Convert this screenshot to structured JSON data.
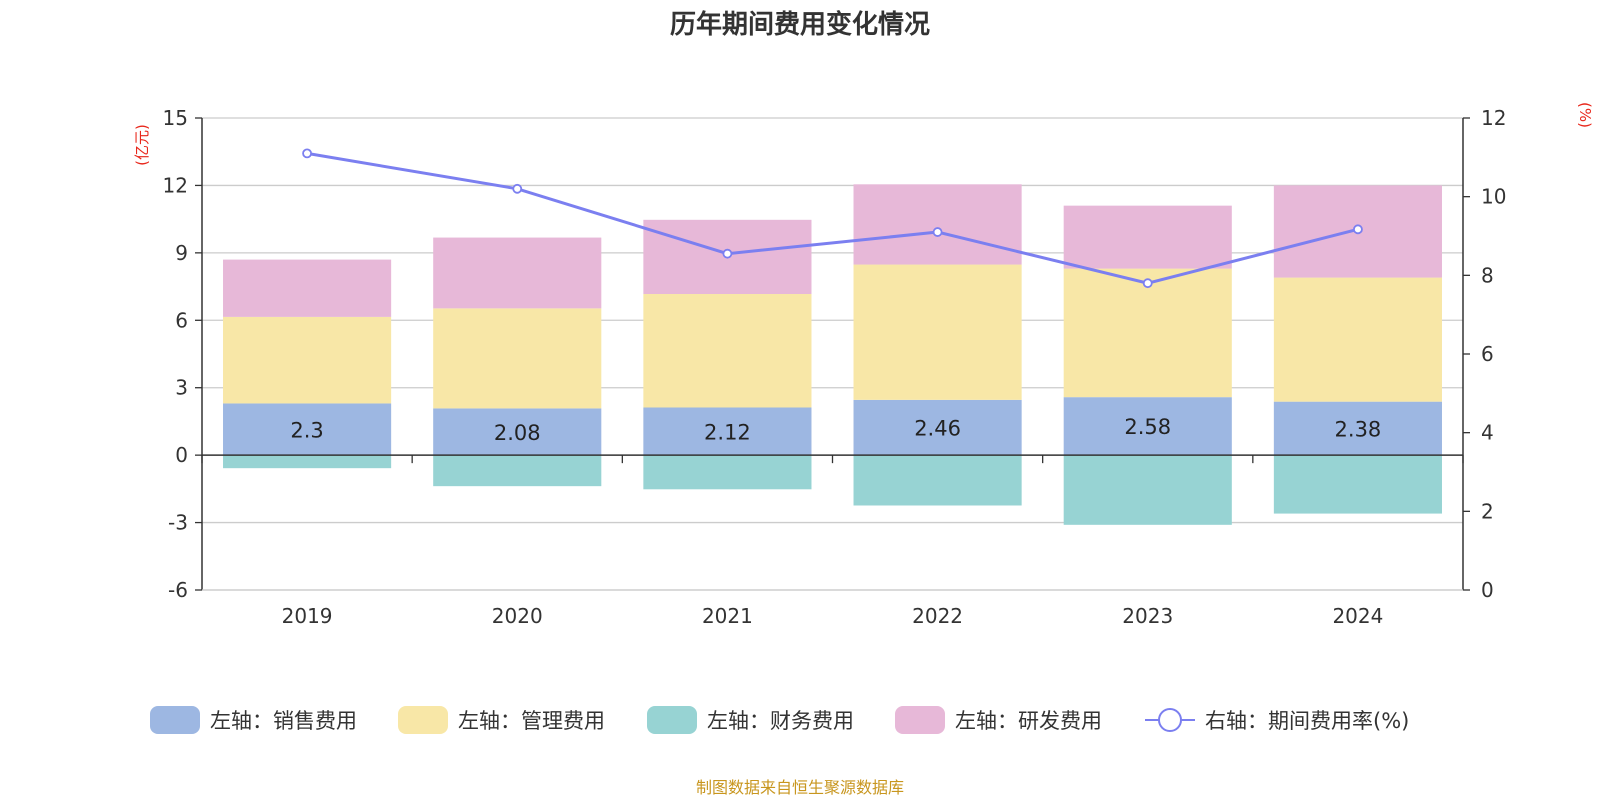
{
  "chart_data": {
    "type": "bar",
    "stacked": true,
    "title": "历年期间费用变化情况",
    "categories": [
      "2019",
      "2020",
      "2021",
      "2022",
      "2023",
      "2024"
    ],
    "left_axis": {
      "unit": "(亿元)",
      "ylim": [
        -6,
        15
      ],
      "ticks": [
        "15",
        "12",
        "9",
        "6",
        "3",
        "0",
        "-3",
        "-6"
      ]
    },
    "right_axis": {
      "unit": "(%)",
      "ylim": [
        0,
        12
      ],
      "ticks": [
        "12",
        "10",
        "8",
        "6",
        "4",
        "2",
        "0"
      ]
    },
    "series": [
      {
        "name": "左轴：销售费用",
        "axis": "left",
        "color": "#9db7e2",
        "values": [
          2.3,
          2.08,
          2.12,
          2.46,
          2.58,
          2.38
        ],
        "labels": [
          "2.3",
          "2.08",
          "2.12",
          "2.46",
          "2.58",
          "2.38"
        ]
      },
      {
        "name": "左轴：管理费用",
        "axis": "left",
        "color": "#f8e7a7",
        "values": [
          3.85,
          4.45,
          5.05,
          6.02,
          5.72,
          5.52
        ]
      },
      {
        "name": "左轴：财务费用",
        "axis": "left",
        "color": "#97d3d3",
        "values": [
          -0.58,
          -1.38,
          -1.52,
          -2.24,
          -3.1,
          -2.6
        ]
      },
      {
        "name": "左轴：研发费用",
        "axis": "left",
        "color": "#e7b8d8",
        "values": [
          2.55,
          3.15,
          3.3,
          3.57,
          2.8,
          4.1
        ]
      },
      {
        "name": "右轴：期间费用率(%)",
        "axis": "right",
        "type": "line",
        "color": "#7b7ff0",
        "values": [
          11.1,
          10.2,
          8.55,
          9.1,
          7.8,
          9.17
        ]
      }
    ],
    "source": "制图数据来自恒生聚源数据库"
  }
}
